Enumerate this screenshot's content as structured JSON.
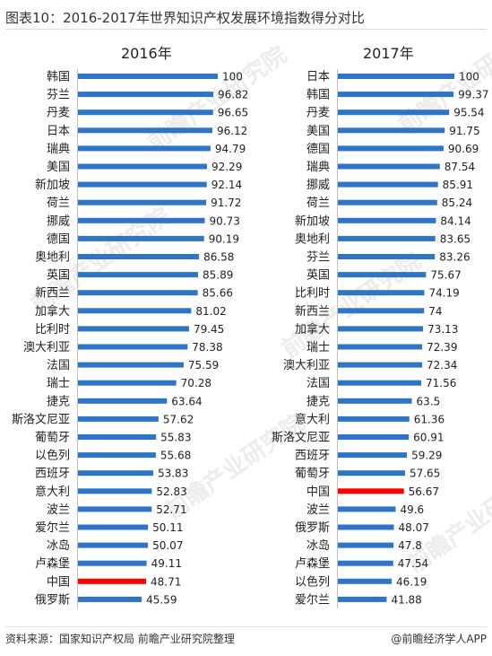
{
  "title": "图表10：2016-2017年世界知识产权发展环境指数得分对比",
  "watermark": "前瞻产业研究院",
  "footer": {
    "source": "资料来源：国家知识产权局 前瞻产业研究院整理",
    "brand": "@前瞻经济学人APP"
  },
  "colors": {
    "bar": "#2e75c7",
    "highlight": "#ff0000"
  },
  "chart_data": [
    {
      "type": "bar",
      "orientation": "horizontal",
      "title": "2016年",
      "highlight": "中国",
      "xlim": [
        0,
        100
      ],
      "categories": [
        "韩国",
        "芬兰",
        "丹麦",
        "日本",
        "瑞典",
        "美国",
        "新加坡",
        "荷兰",
        "挪威",
        "德国",
        "奥地利",
        "英国",
        "新西兰",
        "加拿大",
        "比利时",
        "澳大利亚",
        "法国",
        "瑞士",
        "捷克",
        "斯洛文尼亚",
        "葡萄牙",
        "以色列",
        "西班牙",
        "意大利",
        "波兰",
        "爱尔兰",
        "冰岛",
        "卢森堡",
        "中国",
        "俄罗斯"
      ],
      "values": [
        100,
        96.82,
        96.65,
        96.12,
        94.79,
        92.29,
        92.14,
        91.72,
        90.73,
        90.19,
        86.58,
        85.89,
        85.66,
        81.02,
        79.45,
        78.38,
        75.59,
        70.28,
        63.64,
        57.62,
        55.83,
        55.68,
        53.83,
        52.83,
        52.71,
        50.11,
        50.07,
        49.11,
        48.71,
        45.59
      ]
    },
    {
      "type": "bar",
      "orientation": "horizontal",
      "title": "2017年",
      "highlight": "中国",
      "xlim": [
        0,
        100
      ],
      "categories": [
        "日本",
        "韩国",
        "丹麦",
        "美国",
        "德国",
        "瑞典",
        "挪威",
        "荷兰",
        "新加坡",
        "奥地利",
        "芬兰",
        "英国",
        "比利时",
        "新西兰",
        "加拿大",
        "瑞士",
        "澳大利亚",
        "法国",
        "捷克",
        "意大利",
        "斯洛文尼亚",
        "西班牙",
        "葡萄牙",
        "中国",
        "波兰",
        "俄罗斯",
        "冰岛",
        "卢森堡",
        "以色列",
        "爱尔兰"
      ],
      "values": [
        100,
        99.37,
        95.54,
        91.75,
        90.69,
        87.54,
        85.91,
        85.24,
        84.14,
        83.65,
        83.26,
        75.67,
        74.19,
        74,
        73.13,
        72.39,
        72.34,
        71.56,
        63.5,
        61.36,
        60.91,
        59.29,
        57.65,
        56.67,
        49.6,
        48.07,
        47.8,
        47.54,
        46.19,
        41.88
      ]
    }
  ]
}
